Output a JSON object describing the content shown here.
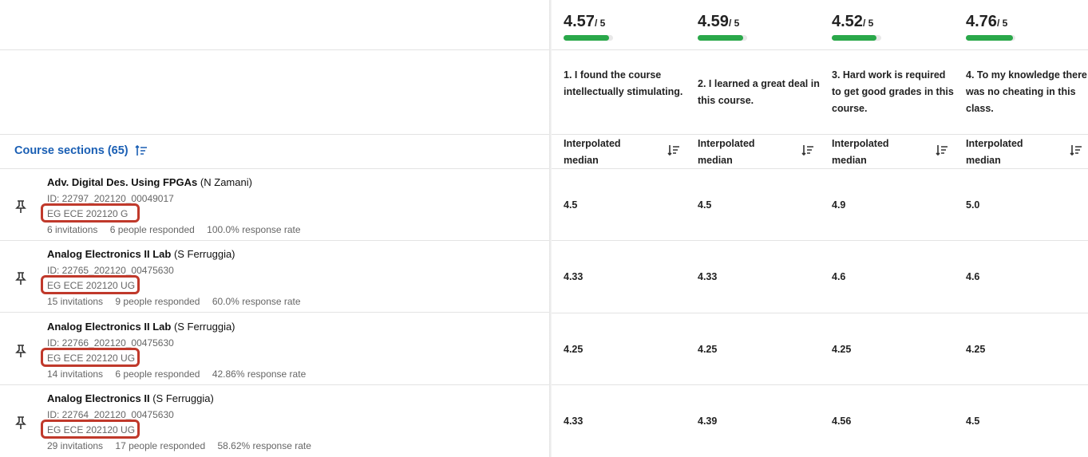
{
  "table": {
    "section_header": "Course sections (65)",
    "rows": [
      {
        "name": "Adv. Digital Des. Using FPGAs",
        "instructor": "(N Zamani)",
        "id": "ID: 22797_202120_00049017",
        "tag": "EG ECE 202120 G",
        "invitations": "6 invitations",
        "responded": "6 people responded",
        "rate": "100.0% response rate",
        "values": [
          "4.5",
          "4.5",
          "4.9",
          "5.0"
        ]
      },
      {
        "name": "Analog Electronics II Lab",
        "instructor": "(S Ferruggia)",
        "id": "ID: 22765_202120_00475630",
        "tag": "EG ECE 202120 UG",
        "invitations": "15 invitations",
        "responded": "9 people responded",
        "rate": "60.0% response rate",
        "values": [
          "4.33",
          "4.33",
          "4.6",
          "4.6"
        ]
      },
      {
        "name": "Analog Electronics II Lab",
        "instructor": "(S Ferruggia)",
        "id": "ID: 22766_202120_00475630",
        "tag": "EG ECE 202120 UG",
        "invitations": "14 invitations",
        "responded": "6 people responded",
        "rate": "42.86% response rate",
        "values": [
          "4.25",
          "4.25",
          "4.25",
          "4.25"
        ]
      },
      {
        "name": "Analog Electronics II",
        "instructor": "(S Ferruggia)",
        "id": "ID: 22764_202120_00475630",
        "tag": "EG ECE 202120 UG",
        "invitations": "29 invitations",
        "responded": "17 people responded",
        "rate": "58.62% response rate",
        "values": [
          "4.33",
          "4.39",
          "4.56",
          "4.5"
        ]
      }
    ],
    "columns": [
      {
        "score": "4.57",
        "max": "/ 5",
        "fraction": 0.914,
        "question": "1. I found the course intellectually stimulating.",
        "metric": "Interpolated median"
      },
      {
        "score": "4.59",
        "max": "/ 5",
        "fraction": 0.918,
        "question": "2. I learned a great deal in this course.",
        "metric": "Interpolated median"
      },
      {
        "score": "4.52",
        "max": "/ 5",
        "fraction": 0.904,
        "question": "3. Hard work is required to get good grades in this course.",
        "metric": "Interpolated median"
      },
      {
        "score": "4.76",
        "max": "/ 5",
        "fraction": 0.952,
        "question": "4. To my knowledge there was no cheating in this class.",
        "metric": "Interpolated median"
      }
    ]
  },
  "colors": {
    "link": "#1a5fb4",
    "bar": "#2aa84a",
    "highlight": "#c0392b"
  },
  "icons": {
    "pin": "pin-icon",
    "sort": "sort-icon"
  }
}
